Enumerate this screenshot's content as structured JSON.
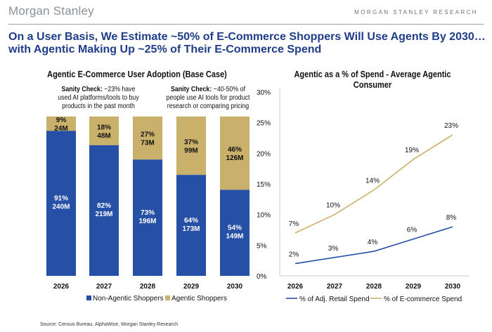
{
  "header": {
    "logo": "Morgan Stanley",
    "brand": "MORGAN STANLEY RESEARCH",
    "headline": "On a User Basis, We Estimate ~50% of E-Commerce Shoppers Will Use Agents By 2030…with Agentic Making Up ~25% of Their E-Commerce Spend"
  },
  "notes": {
    "left_bold": "Sanity Check:",
    "left_text": " ~23% have used AI platforms/tools to buy products in the past month",
    "right_bold": "Sanity Check:",
    "right_text": " ~40-50% of people use AI tools for product research or comparing pricing"
  },
  "source": "Source: Census Bureau, AlphaWise, Morgan Stanley Research",
  "colors": {
    "blue": "#2650a6",
    "gold": "#c9b16b",
    "navy": "#1f3c88"
  },
  "chart_data": [
    {
      "type": "bar",
      "stacked": true,
      "title": "Agentic E-Commerce User Adoption (Base Case)",
      "categories": [
        "2026",
        "2027",
        "2028",
        "2029",
        "2030"
      ],
      "series": [
        {
          "name": "Non-Agentic Shoppers",
          "pct": [
            "91%",
            "82%",
            "73%",
            "64%",
            "54%"
          ],
          "users": [
            "240M",
            "219M",
            "196M",
            "173M",
            "149M"
          ],
          "values": [
            91,
            82,
            73,
            64,
            54
          ]
        },
        {
          "name": "Agentic Shoppers",
          "pct": [
            "9%",
            "18%",
            "27%",
            "37%",
            "46%"
          ],
          "users": [
            "24M",
            "48M",
            "73M",
            "99M",
            "126M"
          ],
          "values": [
            9,
            18,
            27,
            37,
            46
          ]
        }
      ],
      "legend": "bottom"
    },
    {
      "type": "line",
      "title": "Agentic as a % of Spend - Average Agentic Consumer",
      "categories": [
        "2026",
        "2027",
        "2028",
        "2029",
        "2030"
      ],
      "ylim": [
        0,
        30
      ],
      "yticks": [
        "0%",
        "5%",
        "10%",
        "15%",
        "20%",
        "25%",
        "30%"
      ],
      "series": [
        {
          "name": "% of Adj. Retail Spend",
          "values": [
            2,
            3,
            4,
            6,
            8
          ],
          "labels": [
            "2%",
            "3%",
            "4%",
            "6%",
            "8%"
          ]
        },
        {
          "name": "% of E-commerce Spend",
          "values": [
            7,
            10,
            14,
            19,
            23
          ],
          "labels": [
            "7%",
            "10%",
            "14%",
            "19%",
            "23%"
          ]
        }
      ],
      "legend": "bottom"
    }
  ]
}
